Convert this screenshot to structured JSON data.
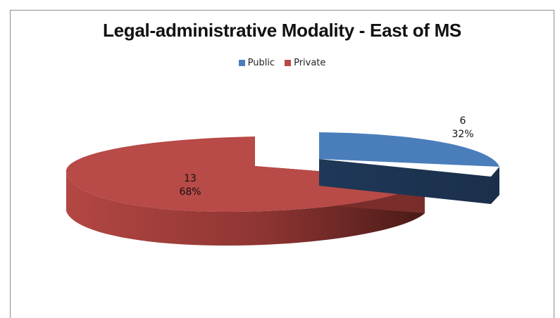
{
  "chart_data": {
    "type": "pie",
    "title": "Legal-administrative Modality - East of MS",
    "legend_position": "top",
    "slices": [
      {
        "name": "Public",
        "value": 6,
        "percent": "32%",
        "value_label": "6",
        "color": "#4a7ebb"
      },
      {
        "name": "Private",
        "value": 13,
        "percent": "68%",
        "value_label": "13",
        "color": "#b84a47"
      }
    ]
  }
}
